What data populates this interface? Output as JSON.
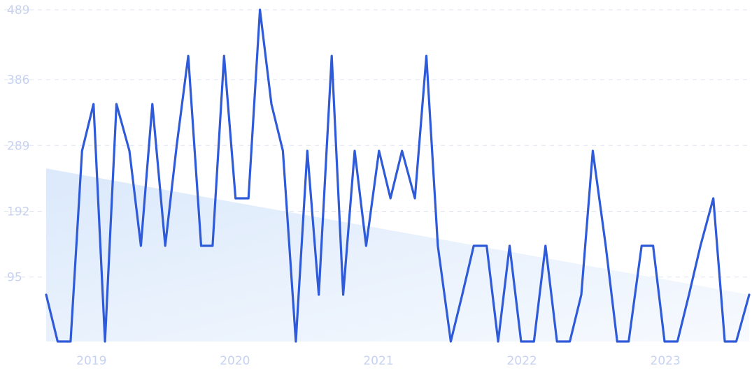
{
  "chart_data": {
    "type": "line",
    "title": "",
    "xlabel": "",
    "ylabel": "",
    "ylim": [
      0,
      489
    ],
    "y_ticks": [
      "95",
      "192",
      "289",
      "386",
      "489"
    ],
    "x_ticks": [
      {
        "label": "2019",
        "t": 2019.0
      },
      {
        "label": "2020",
        "t": 2020.0
      },
      {
        "label": "2021",
        "t": 2021.0
      },
      {
        "label": "2022",
        "t": 2022.0
      },
      {
        "label": "2023",
        "t": 2023.0
      }
    ],
    "x_range": [
      2018.85,
      2023.75
    ],
    "grid": true,
    "legend": "none",
    "colors": {
      "line": "#2f5bd9",
      "area_top": "#dbe9fb",
      "area_bottom": "#f3f8fe",
      "grid": "#dde3f2",
      "tick": "#c7d2f0"
    },
    "trend_area": {
      "start": 255,
      "end": 69
    },
    "series": [
      {
        "values": [
          [
            2018.85,
            69
          ],
          [
            2018.93,
            0
          ],
          [
            2019.02,
            0
          ],
          [
            2019.1,
            281
          ],
          [
            2019.18,
            350
          ],
          [
            2019.26,
            0
          ],
          [
            2019.34,
            350
          ],
          [
            2019.43,
            281
          ],
          [
            2019.51,
            141
          ],
          [
            2019.59,
            350
          ],
          [
            2019.68,
            141
          ],
          [
            2019.76,
            289
          ],
          [
            2019.84,
            421
          ],
          [
            2019.93,
            141
          ],
          [
            2020.01,
            141
          ],
          [
            2020.09,
            421
          ],
          [
            2020.17,
            211
          ],
          [
            2020.26,
            211
          ],
          [
            2020.34,
            489
          ],
          [
            2020.42,
            350
          ],
          [
            2020.5,
            281
          ],
          [
            2020.59,
            0
          ],
          [
            2020.67,
            281
          ],
          [
            2020.75,
            69
          ],
          [
            2020.84,
            421
          ],
          [
            2020.92,
            69
          ],
          [
            2021.0,
            281
          ],
          [
            2021.08,
            141
          ],
          [
            2021.17,
            281
          ],
          [
            2021.25,
            211
          ],
          [
            2021.33,
            281
          ],
          [
            2021.42,
            211
          ],
          [
            2021.5,
            421
          ],
          [
            2021.58,
            141
          ],
          [
            2021.67,
            0
          ],
          [
            2021.75,
            69
          ],
          [
            2021.83,
            141
          ],
          [
            2021.92,
            141
          ],
          [
            2022.0,
            0
          ],
          [
            2022.08,
            141
          ],
          [
            2022.16,
            0
          ],
          [
            2022.25,
            0
          ],
          [
            2022.33,
            141
          ],
          [
            2022.41,
            0
          ],
          [
            2022.5,
            0
          ],
          [
            2022.58,
            69
          ],
          [
            2022.66,
            281
          ],
          [
            2022.75,
            141
          ],
          [
            2022.83,
            0
          ],
          [
            2022.91,
            0
          ],
          [
            2023.0,
            141
          ],
          [
            2023.08,
            141
          ],
          [
            2023.16,
            0
          ],
          [
            2023.25,
            0
          ],
          [
            2023.33,
            69
          ],
          [
            2023.41,
            141
          ],
          [
            2023.5,
            211
          ],
          [
            2023.58,
            0
          ],
          [
            2023.66,
            0
          ],
          [
            2023.75,
            69
          ]
        ]
      }
    ]
  }
}
